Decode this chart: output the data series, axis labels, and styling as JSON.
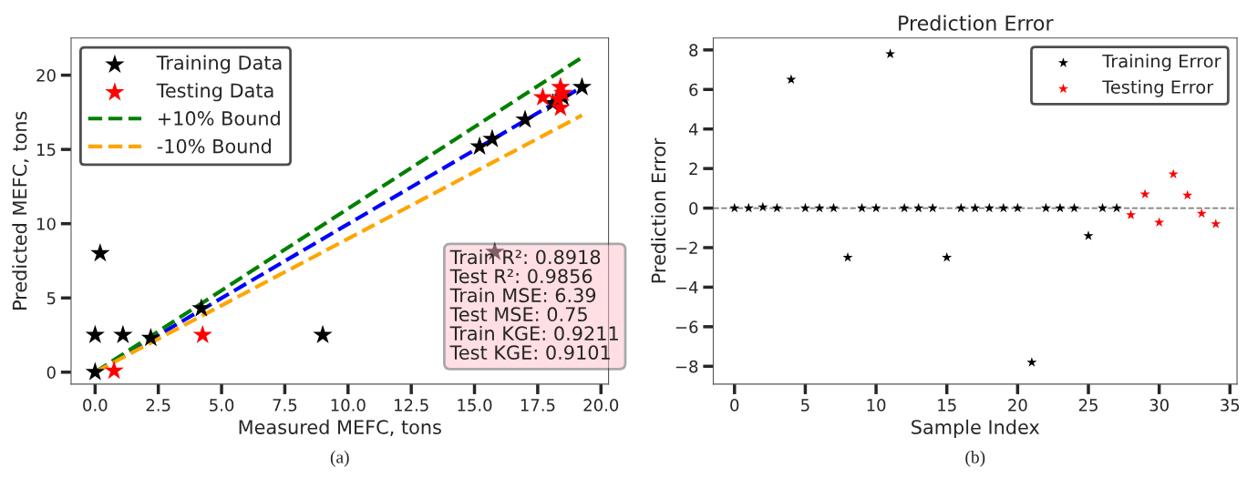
{
  "chart_data": [
    {
      "type": "scatter",
      "xlabel": "Measured MEFC, tons",
      "ylabel": "Predicted MEFC, tons",
      "xlim": [
        -0.95,
        20.3
      ],
      "ylim": [
        -0.8,
        22.5
      ],
      "xticks": [
        {
          "value": 0,
          "label": "0.0"
        },
        2.5,
        {
          "value": 5,
          "label": "5.0"
        },
        7.5,
        {
          "value": 10,
          "label": "10.0"
        },
        12.5,
        {
          "value": 15,
          "label": "15.0"
        },
        17.5,
        {
          "value": 20,
          "label": "20.0"
        }
      ],
      "yticks": [
        0,
        5,
        10,
        15,
        20
      ],
      "grid": false,
      "legend": "top left",
      "marker": "star",
      "series": [
        {
          "name": "Training Data",
          "color": "#000000",
          "x": [
            0,
            0.2,
            0,
            1.1,
            2.2,
            4.2,
            9.0,
            15.2,
            15.7,
            17.0,
            18.1,
            18.5,
            19.25,
            15.8
          ],
          "values": [
            0,
            8.0,
            2.5,
            2.5,
            2.3,
            4.3,
            2.5,
            15.2,
            15.7,
            17.0,
            18.1,
            18.5,
            19.2,
            8.1
          ]
        },
        {
          "name": "Testing Data",
          "color": "#ff0000",
          "x": [
            0.75,
            4.25,
            17.7,
            18.4,
            18.4,
            18.5,
            18.3
          ],
          "values": [
            0.1,
            2.5,
            18.5,
            19.2,
            17.8,
            18.8,
            18.4
          ]
        },
        {
          "type": "line",
          "marker": "none",
          "color": "#0000ff",
          "line_style": "dashed",
          "x": [
            0,
            19.25
          ],
          "values": [
            0,
            19.2
          ]
        },
        {
          "name": "+10% Bound",
          "type": "line",
          "marker": "none",
          "color": "#008000",
          "line_style": "dashed",
          "x": [
            0,
            19.25
          ],
          "values": [
            0,
            21.2
          ]
        },
        {
          "name": "-10% Bound",
          "type": "line",
          "marker": "none",
          "color": "#ffa500",
          "line_style": "dashed",
          "x": [
            0,
            19.25
          ],
          "values": [
            0,
            17.3
          ]
        }
      ],
      "annotations": [
        "Train R²: 0.8918",
        "Test R²: 0.9856",
        "Train MSE: 6.39",
        "Test MSE: 0.75",
        "Train KGE: 0.9211",
        "Test KGE: 0.9101",
        "(a)"
      ]
    },
    {
      "type": "scatter",
      "title": "Prediction Error",
      "xlabel": "Sample Index",
      "ylabel": "Prediction Error",
      "xlim": [
        -1.5,
        35.5
      ],
      "ylim": [
        -8.9,
        8.6
      ],
      "xticks": [
        0,
        5,
        10,
        15,
        20,
        25,
        30,
        35
      ],
      "yticks": [
        {
          "value": -8,
          "label": "−8"
        },
        {
          "value": -6,
          "label": "−6"
        },
        {
          "value": -4,
          "label": "−4"
        },
        {
          "value": -2,
          "label": "−2"
        },
        0,
        2,
        4,
        6,
        8
      ],
      "grid": false,
      "legend": "top right",
      "marker": "star",
      "series": [
        {
          "name": "Training Error",
          "color": "#000000",
          "x": [
            0,
            1,
            2,
            3,
            4,
            5,
            6,
            7,
            8,
            9,
            10,
            11,
            12,
            13,
            14,
            15,
            16,
            17,
            18,
            19,
            20,
            21,
            22,
            23,
            24,
            25,
            26,
            27
          ],
          "values": [
            0,
            0,
            0.05,
            0,
            6.5,
            0,
            0,
            0,
            -2.5,
            0,
            0,
            7.8,
            0,
            0,
            0,
            -2.5,
            0,
            0,
            0,
            0,
            0,
            -7.8,
            0,
            0,
            0,
            -1.4,
            0,
            0
          ]
        },
        {
          "name": "Testing Error",
          "color": "#ff0000",
          "x": [
            28,
            29,
            30,
            31,
            32,
            33,
            34
          ],
          "values": [
            -0.35,
            0.7,
            -0.72,
            1.72,
            0.65,
            -0.28,
            -0.8
          ]
        }
      ],
      "ref_lines": [
        {
          "axis": "y",
          "value": 0,
          "color": "#808080",
          "line_style": "dashed"
        }
      ],
      "annotations": [
        "(b)"
      ]
    }
  ]
}
